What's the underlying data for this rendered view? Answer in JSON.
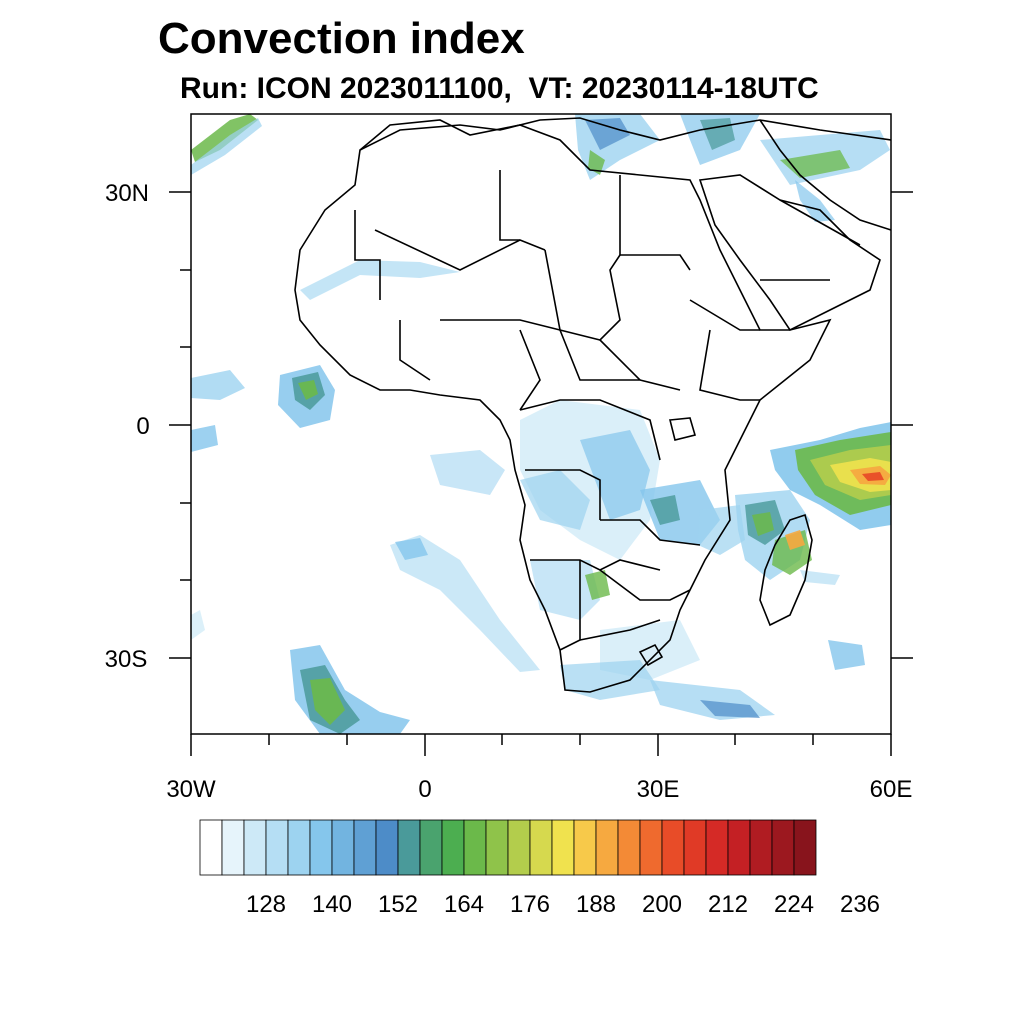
{
  "title": "Convection index",
  "subtitle": "Run: ICON 2023011100,  VT: 20230114-18UTC",
  "map": {
    "region": "Africa",
    "lon_range": [
      -30,
      60
    ],
    "lat_range": [
      -40,
      40
    ],
    "lat_labels": [
      {
        "label": "30N",
        "lat": 30
      },
      {
        "label": "0",
        "lat": 0
      },
      {
        "label": "30S",
        "lat": -30
      }
    ],
    "lon_labels": [
      {
        "label": "30W",
        "lon": -30
      },
      {
        "label": "0",
        "lon": 0
      },
      {
        "label": "30E",
        "lon": 30
      },
      {
        "label": "60E",
        "lon": 60
      }
    ]
  },
  "colorbar": {
    "labels": [
      "128",
      "140",
      "152",
      "164",
      "176",
      "188",
      "200",
      "212",
      "224",
      "236"
    ],
    "colors": [
      "#ffffff",
      "#e6f4fb",
      "#cde9f7",
      "#b5def4",
      "#9dd3f0",
      "#85c6ec",
      "#72b4e0",
      "#5fa0d4",
      "#4d8cc8",
      "#4a9a9a",
      "#4aa36e",
      "#4cae50",
      "#6bb94a",
      "#8fc34a",
      "#b3cd4c",
      "#d6d94e",
      "#f0e24e",
      "#f7c94a",
      "#f6a940",
      "#f38a36",
      "#ef6a2e",
      "#e84c28",
      "#e03a26",
      "#d52a26",
      "#c42024",
      "#b01c22",
      "#9c181f",
      "#88141c"
    ]
  }
}
